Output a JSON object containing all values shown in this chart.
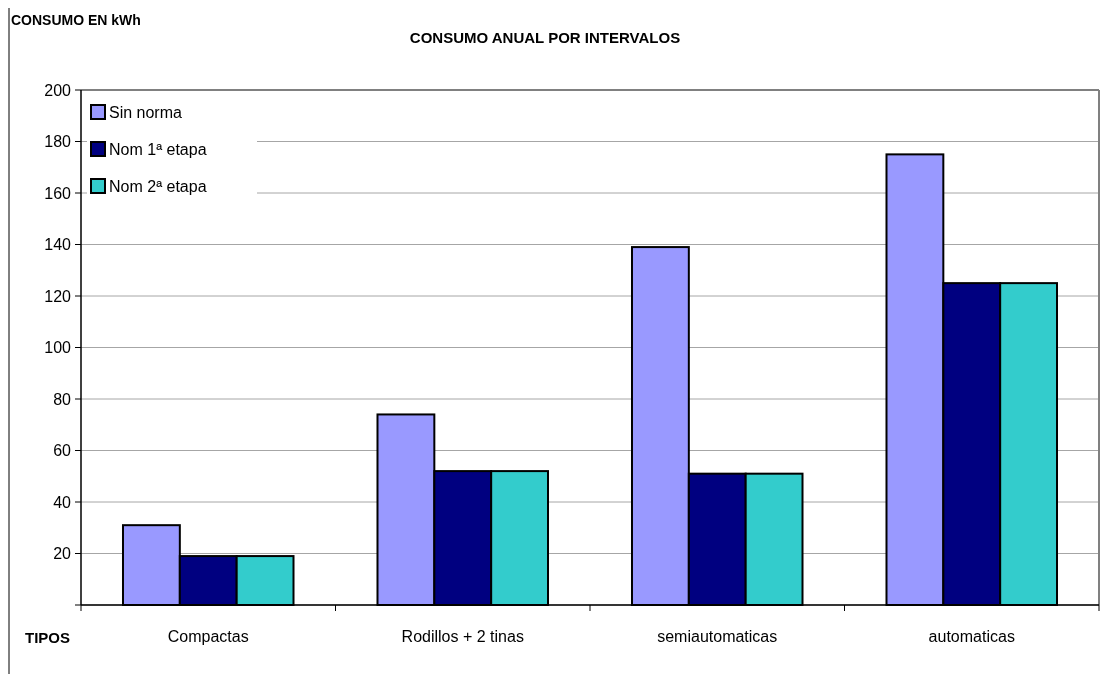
{
  "chart_data": {
    "type": "bar",
    "title": "CONSUMO ANUAL POR INTERVALOS",
    "ylabel": "CONSUMO EN kWh",
    "xlabel": "TIPOS",
    "categories": [
      "Compactas",
      "Rodillos + 2 tinas",
      "semiautomaticas",
      "automaticas"
    ],
    "series": [
      {
        "name": "Sin norma",
        "color": "#9999ff",
        "values": [
          31,
          74,
          139,
          175
        ]
      },
      {
        "name": "Nom 1ª etapa",
        "color": "#000080",
        "values": [
          19,
          52,
          51,
          125
        ]
      },
      {
        "name": "Nom 2ª etapa",
        "color": "#33cccc",
        "values": [
          19,
          52,
          51,
          125
        ]
      }
    ],
    "ylim": [
      0,
      200
    ],
    "yticks": [
      {
        "value": 0,
        "label": null
      },
      20,
      40,
      60,
      80,
      100,
      120,
      140,
      160,
      180,
      200
    ],
    "grid": "y",
    "legend": "top left"
  }
}
